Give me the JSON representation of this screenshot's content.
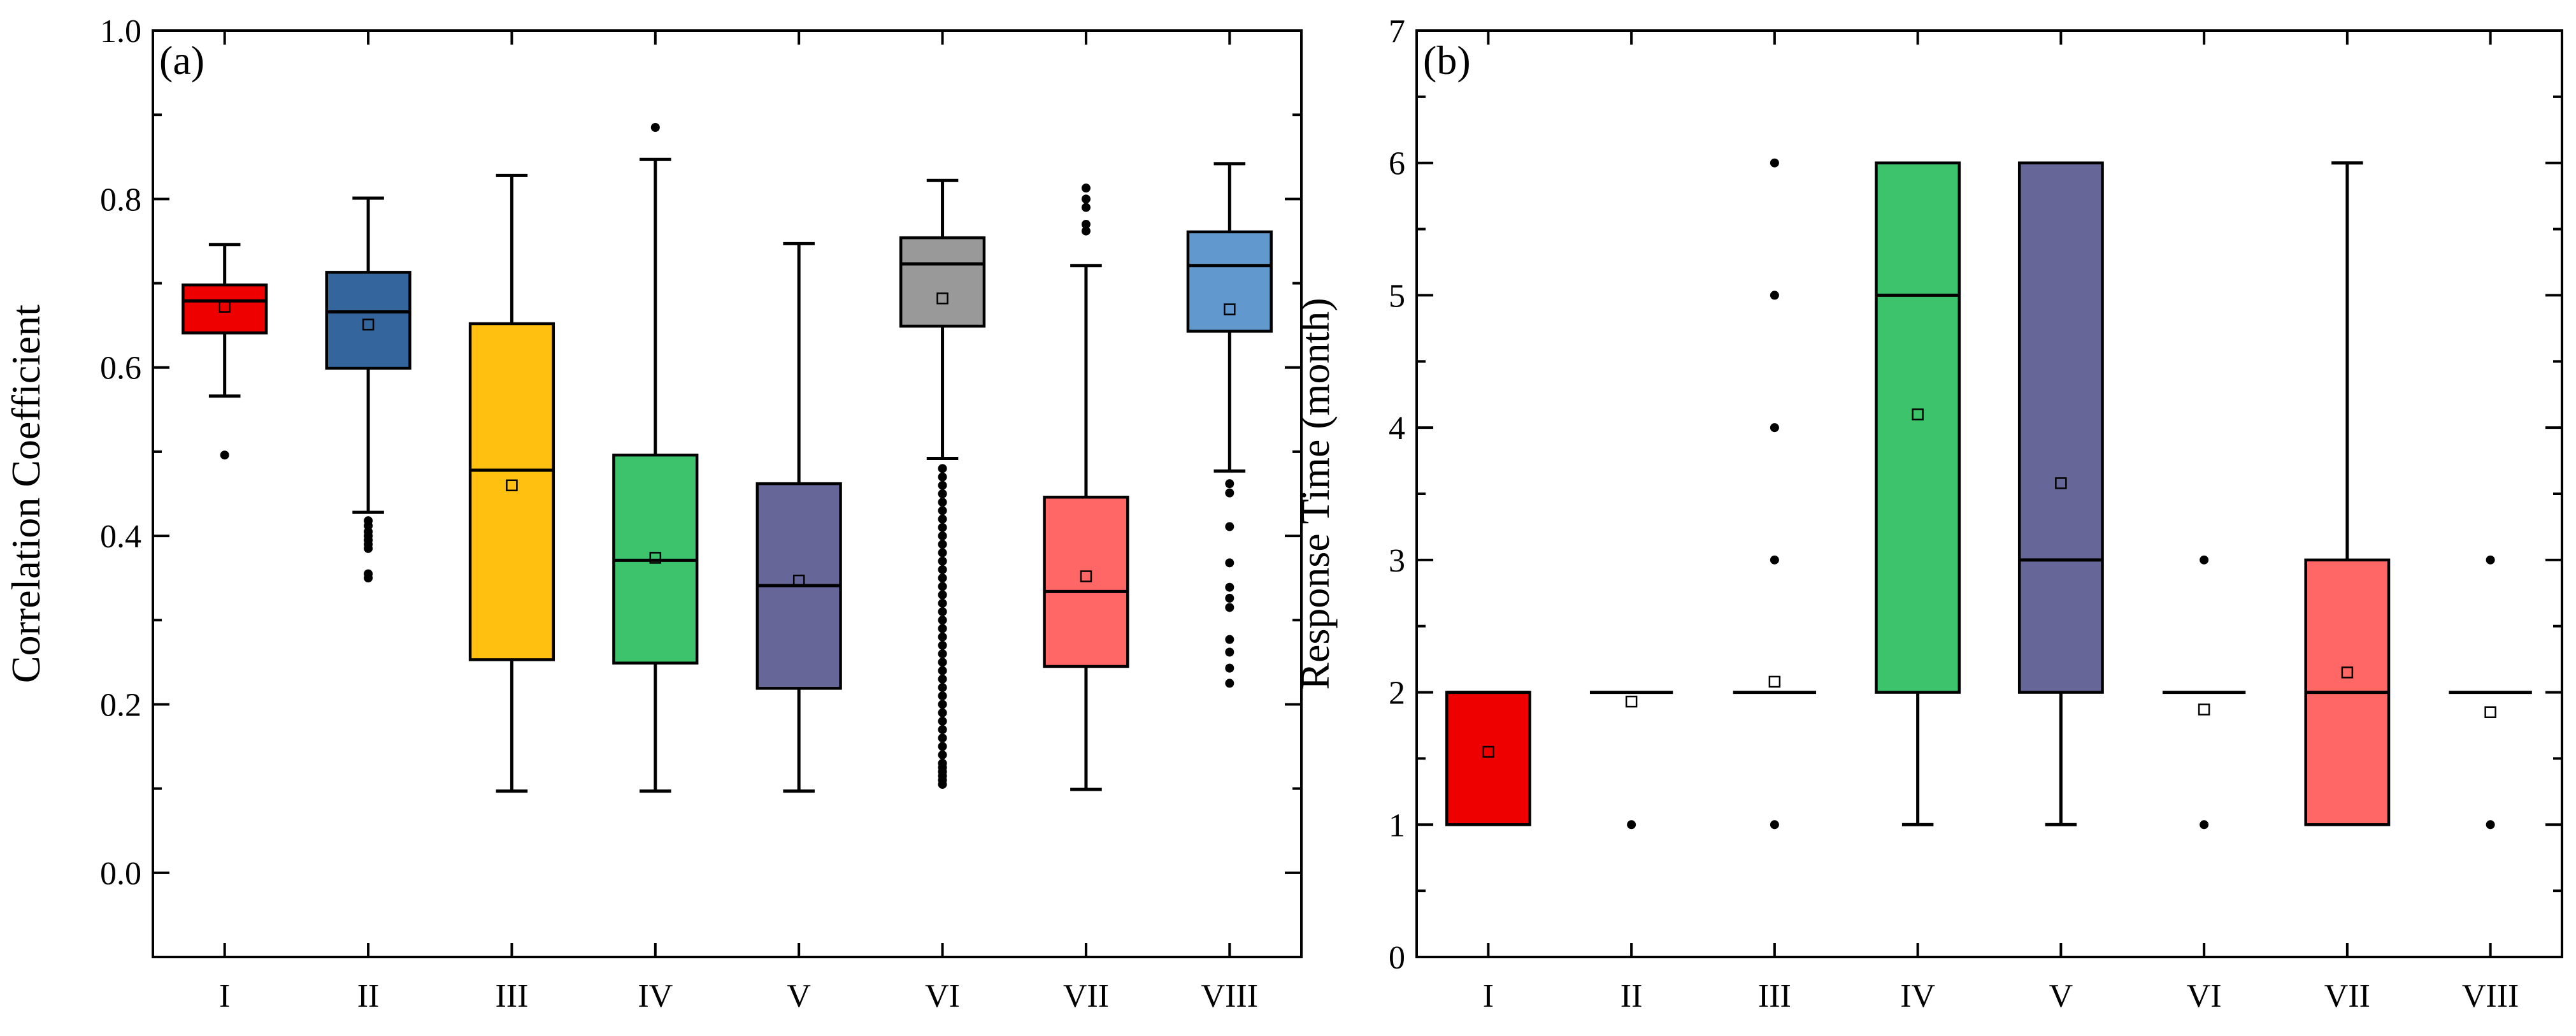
{
  "chart_data": [
    {
      "type": "box",
      "panel_label": "(a)",
      "ylabel": "Correlation Coefficient",
      "ylim": [
        -0.1,
        1.0
      ],
      "yticks": [
        0.0,
        0.2,
        0.4,
        0.6,
        0.8,
        1.0
      ],
      "ytick_labels": [
        "0.0",
        "0.2",
        "0.4",
        "0.6",
        "0.8",
        "1.0"
      ],
      "categories": [
        "I",
        "II",
        "III",
        "IV",
        "V",
        "VI",
        "VII",
        "VIII"
      ],
      "boxes": [
        {
          "category": "I",
          "color": "#EE0000",
          "whisker_low": 0.566,
          "q1": 0.641,
          "median": 0.679,
          "q3": 0.698,
          "whisker_high": 0.746,
          "mean": 0.672,
          "outliers": [
            0.496
          ]
        },
        {
          "category": "II",
          "color": "#34659C",
          "whisker_low": 0.428,
          "q1": 0.599,
          "median": 0.666,
          "q3": 0.713,
          "whisker_high": 0.801,
          "mean": 0.651,
          "outliers": [
            0.35,
            0.355,
            0.385,
            0.39,
            0.395,
            0.4,
            0.405,
            0.412,
            0.418
          ]
        },
        {
          "category": "III",
          "color": "#FFC010",
          "whisker_low": 0.097,
          "q1": 0.253,
          "median": 0.478,
          "q3": 0.652,
          "whisker_high": 0.828,
          "mean": 0.46,
          "outliers": []
        },
        {
          "category": "IV",
          "color": "#3CC36C",
          "whisker_low": 0.097,
          "q1": 0.249,
          "median": 0.371,
          "q3": 0.496,
          "whisker_high": 0.847,
          "mean": 0.374,
          "outliers": [
            0.885
          ]
        },
        {
          "category": "V",
          "color": "#666699",
          "whisker_low": 0.097,
          "q1": 0.219,
          "median": 0.341,
          "q3": 0.462,
          "whisker_high": 0.747,
          "mean": 0.347,
          "outliers": []
        },
        {
          "category": "VI",
          "color": "#999999",
          "whisker_low": 0.492,
          "q1": 0.649,
          "median": 0.723,
          "q3": 0.754,
          "whisker_high": 0.822,
          "mean": 0.682,
          "outliers": [
            0.105,
            0.11,
            0.115,
            0.12,
            0.125,
            0.13,
            0.14,
            0.15,
            0.16,
            0.17,
            0.18,
            0.19,
            0.2,
            0.21,
            0.22,
            0.23,
            0.24,
            0.25,
            0.26,
            0.27,
            0.28,
            0.29,
            0.3,
            0.31,
            0.32,
            0.33,
            0.34,
            0.35,
            0.36,
            0.37,
            0.38,
            0.39,
            0.4,
            0.41,
            0.42,
            0.43,
            0.44,
            0.45,
            0.46,
            0.47,
            0.48
          ]
        },
        {
          "category": "VII",
          "color": "#FF6666",
          "whisker_low": 0.099,
          "q1": 0.245,
          "median": 0.334,
          "q3": 0.446,
          "whisker_high": 0.721,
          "mean": 0.352,
          "outliers": [
            0.762,
            0.77,
            0.79,
            0.8,
            0.813
          ]
        },
        {
          "category": "VIII",
          "color": "#6199CE",
          "whisker_low": 0.477,
          "q1": 0.643,
          "median": 0.721,
          "q3": 0.761,
          "whisker_high": 0.842,
          "mean": 0.669,
          "outliers": [
            0.225,
            0.243,
            0.262,
            0.277,
            0.315,
            0.326,
            0.339,
            0.368,
            0.411,
            0.451,
            0.462
          ]
        }
      ]
    },
    {
      "type": "box",
      "panel_label": "(b)",
      "ylabel": "Response Time (month)",
      "ylim": [
        0,
        7
      ],
      "yticks": [
        0,
        1,
        2,
        3,
        4,
        5,
        6,
        7
      ],
      "ytick_labels": [
        "0",
        "1",
        "2",
        "3",
        "4",
        "5",
        "6",
        "7"
      ],
      "categories": [
        "I",
        "II",
        "III",
        "IV",
        "V",
        "VI",
        "VII",
        "VIII"
      ],
      "boxes": [
        {
          "category": "I",
          "color": "#EE0000",
          "whisker_low": 1,
          "q1": 1,
          "median": 2,
          "q3": 2,
          "whisker_high": 2,
          "mean": 1.55,
          "outliers": []
        },
        {
          "category": "II",
          "color": "#34659C",
          "whisker_low": 2,
          "q1": 2,
          "median": 2,
          "q3": 2,
          "whisker_high": 2,
          "mean": 1.93,
          "outliers": [
            1
          ]
        },
        {
          "category": "III",
          "color": "#FFC010",
          "whisker_low": 2,
          "q1": 2,
          "median": 2,
          "q3": 2,
          "whisker_high": 2,
          "mean": 2.08,
          "outliers": [
            1,
            3,
            4,
            5,
            6
          ]
        },
        {
          "category": "IV",
          "color": "#3CC36C",
          "whisker_low": 1,
          "q1": 2,
          "median": 5,
          "q3": 6,
          "whisker_high": 6,
          "mean": 4.1,
          "outliers": []
        },
        {
          "category": "V",
          "color": "#666699",
          "whisker_low": 1,
          "q1": 2,
          "median": 3,
          "q3": 6,
          "whisker_high": 6,
          "mean": 3.58,
          "outliers": []
        },
        {
          "category": "VI",
          "color": "#999999",
          "whisker_low": 2,
          "q1": 2,
          "median": 2,
          "q3": 2,
          "whisker_high": 2,
          "mean": 1.87,
          "outliers": [
            1,
            3
          ]
        },
        {
          "category": "VII",
          "color": "#FF6666",
          "whisker_low": 1,
          "q1": 1,
          "median": 2,
          "q3": 3,
          "whisker_high": 6,
          "mean": 2.15,
          "outliers": []
        },
        {
          "category": "VIII",
          "color": "#6199CE",
          "whisker_low": 2,
          "q1": 2,
          "median": 2,
          "q3": 2,
          "whisker_high": 2,
          "mean": 1.85,
          "outliers": [
            1,
            3
          ]
        }
      ]
    }
  ]
}
